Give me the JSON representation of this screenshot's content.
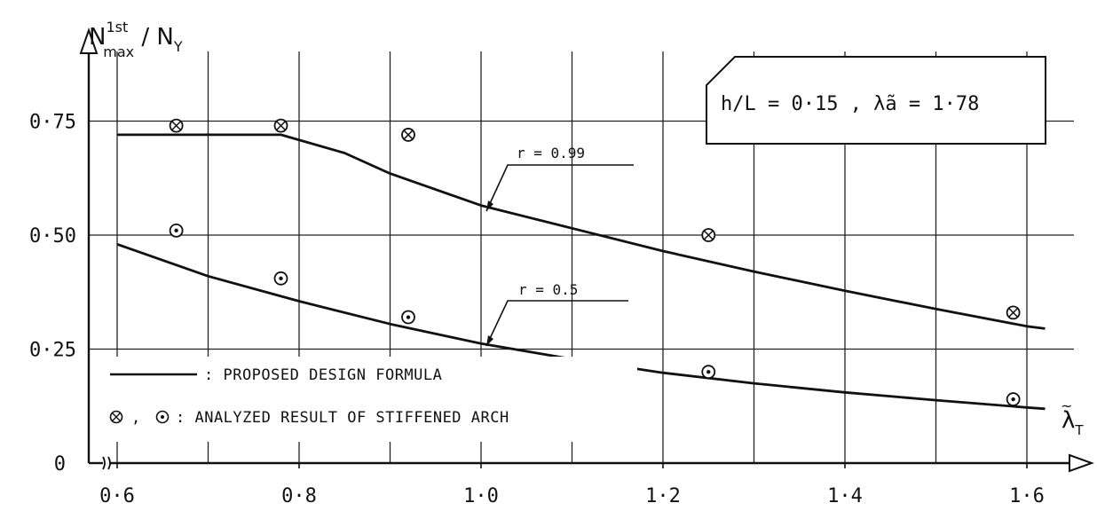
{
  "chart_data": {
    "type": "line",
    "ylabel_main": "N",
    "ylabel_sup": "1st",
    "ylabel_sub": "max",
    "ylabel_tail": " / N",
    "ylabel_tail_sub": "Y",
    "xlabel_main": "λ",
    "xlabel_sub": "T",
    "xlim": [
      0.55,
      1.62
    ],
    "ylim": [
      0,
      0.88
    ],
    "grid": true,
    "x_ticks": [
      {
        "value": 0.6,
        "label": "0·6"
      },
      {
        "value": 0.8,
        "label": "0·8"
      },
      {
        "value": 1.0,
        "label": "1·0"
      },
      {
        "value": 1.2,
        "label": "1·2"
      },
      {
        "value": 1.4,
        "label": "1·4"
      },
      {
        "value": 1.6,
        "label": "1·6"
      }
    ],
    "x_grid": [
      0.6,
      0.7,
      0.8,
      0.9,
      1.0,
      1.1,
      1.2,
      1.3,
      1.4,
      1.5,
      1.6
    ],
    "y_ticks": [
      {
        "value": 0,
        "label": "0"
      },
      {
        "value": 0.25,
        "label": "0·25"
      },
      {
        "value": 0.5,
        "label": "0·50"
      },
      {
        "value": 0.75,
        "label": "0·75"
      }
    ],
    "parameter_box": "h/L = 0·15 , λ̃a = 1·78",
    "series": [
      {
        "name": "r = 0.99",
        "label": "r = 0.99",
        "marker": "crossed-circle",
        "curve": [
          {
            "x": 0.6,
            "y": 0.72
          },
          {
            "x": 0.78,
            "y": 0.72
          },
          {
            "x": 0.85,
            "y": 0.68
          },
          {
            "x": 0.9,
            "y": 0.635
          },
          {
            "x": 1.0,
            "y": 0.565
          },
          {
            "x": 1.1,
            "y": 0.515
          },
          {
            "x": 1.2,
            "y": 0.465
          },
          {
            "x": 1.3,
            "y": 0.42
          },
          {
            "x": 1.4,
            "y": 0.378
          },
          {
            "x": 1.5,
            "y": 0.338
          },
          {
            "x": 1.6,
            "y": 0.3
          },
          {
            "x": 1.62,
            "y": 0.295
          }
        ],
        "points": [
          {
            "x": 0.665,
            "y": 0.74
          },
          {
            "x": 0.78,
            "y": 0.74
          },
          {
            "x": 0.92,
            "y": 0.72
          },
          {
            "x": 1.25,
            "y": 0.5
          },
          {
            "x": 1.585,
            "y": 0.33
          }
        ]
      },
      {
        "name": "r = 0.5",
        "label": "r = 0.5",
        "marker": "dotted-circle",
        "curve": [
          {
            "x": 0.6,
            "y": 0.48
          },
          {
            "x": 0.7,
            "y": 0.41
          },
          {
            "x": 0.8,
            "y": 0.355
          },
          {
            "x": 0.9,
            "y": 0.305
          },
          {
            "x": 1.0,
            "y": 0.262
          },
          {
            "x": 1.1,
            "y": 0.228
          },
          {
            "x": 1.2,
            "y": 0.198
          },
          {
            "x": 1.3,
            "y": 0.175
          },
          {
            "x": 1.4,
            "y": 0.155
          },
          {
            "x": 1.5,
            "y": 0.138
          },
          {
            "x": 1.6,
            "y": 0.122
          },
          {
            "x": 1.62,
            "y": 0.119
          }
        ],
        "points": [
          {
            "x": 0.665,
            "y": 0.51
          },
          {
            "x": 0.78,
            "y": 0.405
          },
          {
            "x": 0.92,
            "y": 0.32
          },
          {
            "x": 1.25,
            "y": 0.2
          },
          {
            "x": 1.585,
            "y": 0.14
          }
        ]
      }
    ],
    "legend": [
      {
        "symbol": "line",
        "text": ":  PROPOSED DESIGN FORMULA"
      },
      {
        "symbol": "markers",
        "text": ":  ANALYZED RESULT OF STIFFENED ARCH"
      }
    ]
  }
}
